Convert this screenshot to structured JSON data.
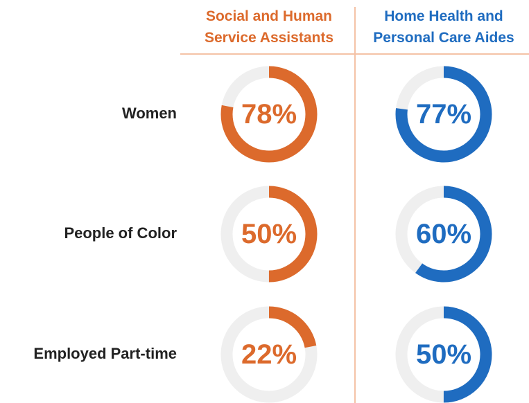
{
  "chart_data": {
    "type": "donut",
    "categories": [
      "Women",
      "People of Color",
      "Employed Part-time"
    ],
    "max": 100,
    "track_color": "#efefef",
    "series": [
      {
        "name": "Social and Human Service Assistants",
        "color": "#dc6a2c",
        "values": [
          78,
          50,
          22
        ],
        "value_labels": [
          "78%",
          "50%",
          "22%"
        ]
      },
      {
        "name": "Home Health and Personal Care Aides",
        "color": "#1f6cc0",
        "values": [
          77,
          60,
          50
        ],
        "value_labels": [
          "77%",
          "60%",
          "50%"
        ]
      }
    ]
  }
}
